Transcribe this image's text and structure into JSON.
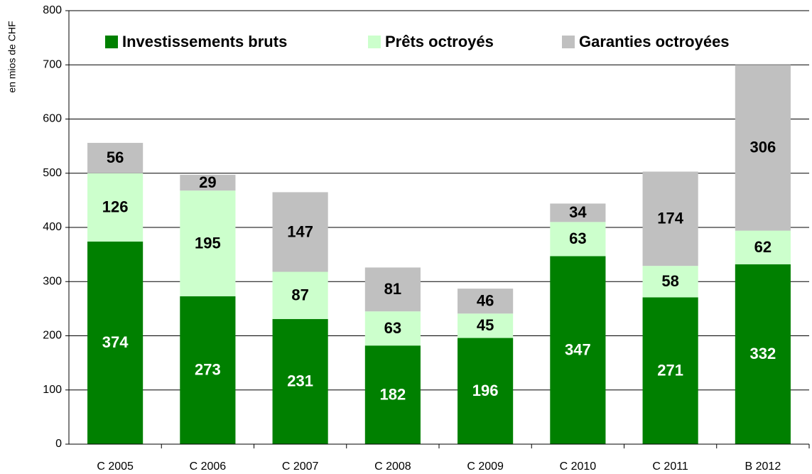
{
  "chart_data": {
    "type": "stacked-bar",
    "y_label": "en mios de CHF",
    "categories": [
      "C 2005",
      "C 2006",
      "C 2007",
      "C 2008",
      "C 2009",
      "C 2010",
      "C 2011",
      "B 2012"
    ],
    "series": [
      {
        "name": "Investissements bruts",
        "color": "#008000",
        "label_color": "#ffffff",
        "values": [
          374,
          273,
          231,
          182,
          196,
          347,
          271,
          332
        ]
      },
      {
        "name": "Prêts octroyés",
        "color": "#ccffcc",
        "label_color": "#000000",
        "values": [
          126,
          195,
          87,
          63,
          45,
          63,
          58,
          62
        ]
      },
      {
        "name": "Garanties octroyées",
        "color": "#c0c0c0",
        "label_color": "#000000",
        "values": [
          56,
          29,
          147,
          81,
          46,
          34,
          174,
          306
        ]
      }
    ],
    "ylim": [
      0,
      800
    ],
    "yticks": [
      0,
      100,
      200,
      300,
      400,
      500,
      600,
      700,
      800
    ],
    "grid": true,
    "legend": "top"
  }
}
